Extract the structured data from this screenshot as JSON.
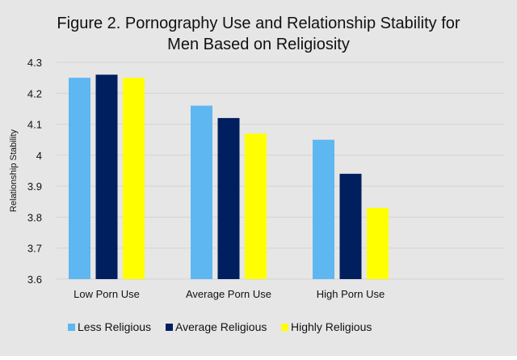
{
  "chart_data": {
    "type": "bar",
    "title_lines": [
      "Figure 2. Pornography Use and Relationship Stability for",
      "Men Based on Religiosity"
    ],
    "xlabel": "",
    "ylabel": "Relationship Stability",
    "ylim": [
      3.6,
      4.3
    ],
    "yticks": [
      3.6,
      3.7,
      3.8,
      3.9,
      4,
      4.1,
      4.2,
      4.3
    ],
    "ytick_labels": [
      "3.6",
      "3.7",
      "3.8",
      "3.9",
      "4",
      "4.1",
      "4.2",
      "4.3"
    ],
    "grid": true,
    "legend_position": "bottom",
    "categories": [
      "Low Porn Use",
      "Average Porn Use",
      "High Porn Use"
    ],
    "series": [
      {
        "name": "Less Religious",
        "color": "#5eb7f0",
        "values": [
          4.25,
          4.16,
          4.05
        ]
      },
      {
        "name": "Average Religious",
        "color": "#001f5f",
        "values": [
          4.26,
          4.12,
          3.94
        ]
      },
      {
        "name": "Highly Religious",
        "color": "#ffff00",
        "values": [
          4.25,
          4.07,
          3.83
        ]
      }
    ]
  }
}
